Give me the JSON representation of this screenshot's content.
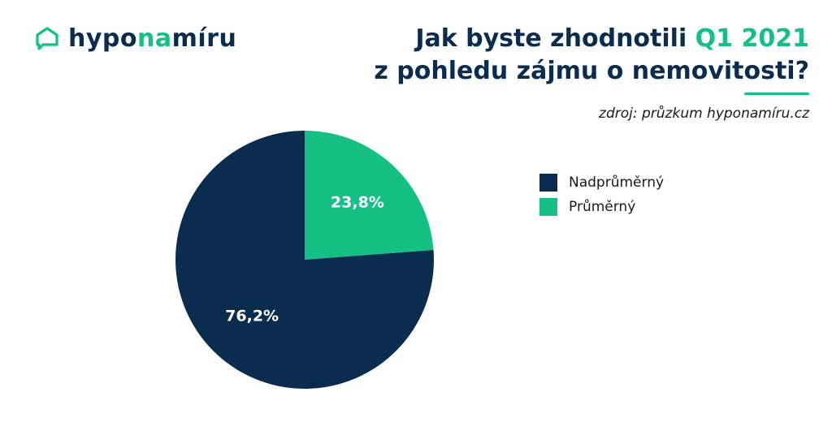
{
  "logo": {
    "text_part1": "hypo",
    "text_accent": "na",
    "text_part2": "míru",
    "icon": "speech-house-icon"
  },
  "heading": {
    "line1_pre": "Jak byste zhodnotili ",
    "line1_accent": "Q1 2021",
    "line2": "z pohledu zájmu o nemovitosti?"
  },
  "source": "zdroj: průzkum hyponamíru.cz",
  "colors": {
    "navy": "#0a2c4e",
    "green": "#14c084"
  },
  "chart_data": {
    "type": "pie",
    "title": "",
    "slices": [
      {
        "label": "Nadprůměrný",
        "value": 76.2,
        "display": "76,2%",
        "color": "#0a2c4e"
      },
      {
        "label": "Průměrný",
        "value": 23.8,
        "display": "23,8%",
        "color": "#14c084"
      }
    ],
    "start_angle": "12 o'clock",
    "direction": "clockwise",
    "legend": "right",
    "legend_entries": [
      "Nadprůměrný",
      "Průměrný"
    ]
  }
}
